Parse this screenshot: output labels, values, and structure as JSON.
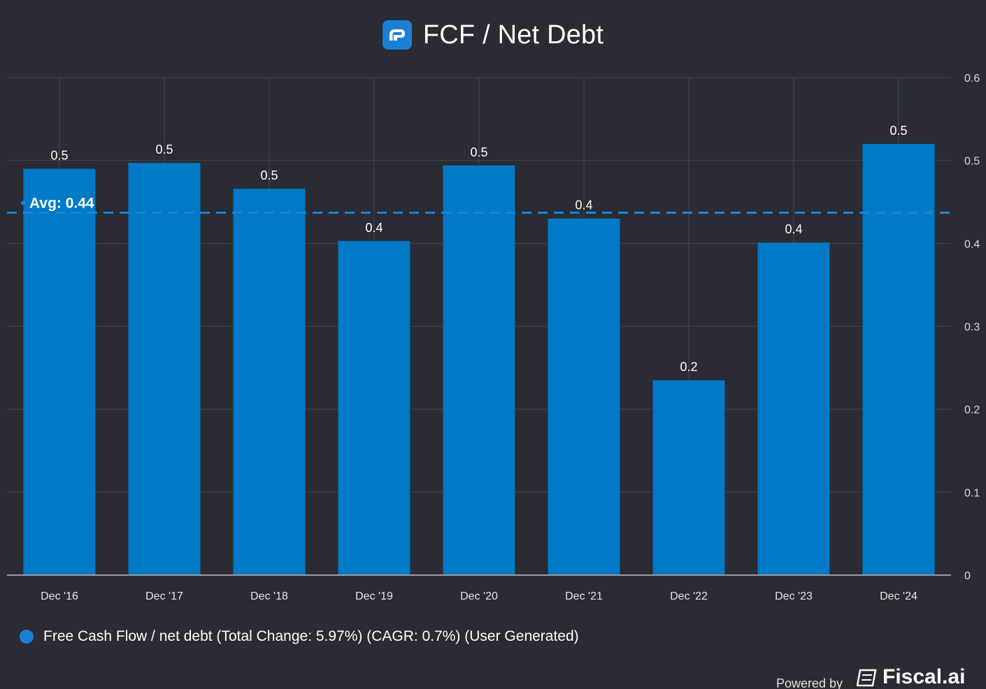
{
  "header": {
    "title": "FCF / Net Debt",
    "logo_icon": "fiscal-logo-icon"
  },
  "chart_data": {
    "type": "bar",
    "title": "FCF / Net Debt",
    "categories": [
      "Dec '16",
      "Dec '17",
      "Dec '18",
      "Dec '19",
      "Dec '20",
      "Dec '21",
      "Dec '22",
      "Dec '23",
      "Dec '24"
    ],
    "values": [
      0.49,
      0.497,
      0.466,
      0.403,
      0.494,
      0.43,
      0.235,
      0.401,
      0.52
    ],
    "data_labels": [
      "0.5",
      "0.5",
      "0.5",
      "0.4",
      "0.5",
      "0.4",
      "0.2",
      "0.4",
      "0.5"
    ],
    "ylim": [
      0,
      0.6
    ],
    "yticks": [
      "0",
      "0.1",
      "0.2",
      "0.3",
      "0.4",
      "0.5",
      "0.6"
    ],
    "y_axis_side": "right",
    "grid": true,
    "average": {
      "value": 0.437,
      "label": "Avg: 0.44"
    },
    "series_color": "#0079c6",
    "average_line_color": "#1a84d6",
    "legend": {
      "position": "bottom-left",
      "label": "Free Cash Flow / net debt (Total Change: 5.97%) (CAGR: 0.7%) (User Generated)"
    }
  },
  "footer": {
    "powered_by": "Powered by",
    "brand": "Fiscal.ai",
    "brand_icon": "fiscal-brand-icon"
  }
}
